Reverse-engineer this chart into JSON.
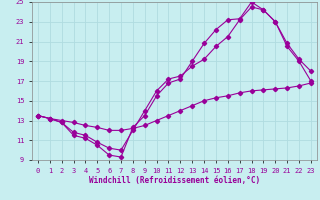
{
  "xlabel": "Windchill (Refroidissement éolien,°C)",
  "bg_color": "#c8eef0",
  "grid_color": "#b0dce0",
  "line_color": "#990099",
  "xlim": [
    -0.5,
    23.5
  ],
  "ylim": [
    9,
    25
  ],
  "xticks": [
    0,
    1,
    2,
    3,
    4,
    5,
    6,
    7,
    8,
    9,
    10,
    11,
    12,
    13,
    14,
    15,
    16,
    17,
    18,
    19,
    20,
    21,
    22,
    23
  ],
  "yticks": [
    9,
    11,
    13,
    15,
    17,
    19,
    21,
    23,
    25
  ],
  "series": [
    {
      "x": [
        0,
        1,
        2,
        3,
        4,
        5,
        6,
        7,
        8,
        9,
        10,
        11,
        12,
        13,
        14,
        15,
        16,
        17,
        18,
        19,
        20,
        21,
        22,
        23
      ],
      "y": [
        13.5,
        13.2,
        12.8,
        11.5,
        11.2,
        10.5,
        9.5,
        9.3,
        12.3,
        13.5,
        15.5,
        16.8,
        17.2,
        19.0,
        20.8,
        22.2,
        23.2,
        23.3,
        25.0,
        24.2,
        23.0,
        20.5,
        19.0,
        17.0
      ]
    },
    {
      "x": [
        0,
        1,
        2,
        3,
        4,
        5,
        6,
        7,
        8,
        9,
        10,
        11,
        12,
        13,
        14,
        15,
        16,
        17,
        18,
        19,
        20,
        21,
        22,
        23
      ],
      "y": [
        13.5,
        13.2,
        12.8,
        11.8,
        11.5,
        10.8,
        10.2,
        10.0,
        12.0,
        14.0,
        16.0,
        17.2,
        17.5,
        18.5,
        19.2,
        20.5,
        21.5,
        23.2,
        24.5,
        24.2,
        23.0,
        20.8,
        19.2,
        18.0
      ]
    },
    {
      "x": [
        0,
        1,
        2,
        3,
        4,
        5,
        6,
        7,
        8,
        9,
        10,
        11,
        12,
        13,
        14,
        15,
        16,
        17,
        18,
        19,
        20,
        21,
        22,
        23
      ],
      "y": [
        13.5,
        13.2,
        13.0,
        12.8,
        12.5,
        12.3,
        12.0,
        12.0,
        12.2,
        12.5,
        13.0,
        13.5,
        14.0,
        14.5,
        15.0,
        15.3,
        15.5,
        15.8,
        16.0,
        16.1,
        16.2,
        16.3,
        16.5,
        16.8
      ]
    }
  ]
}
